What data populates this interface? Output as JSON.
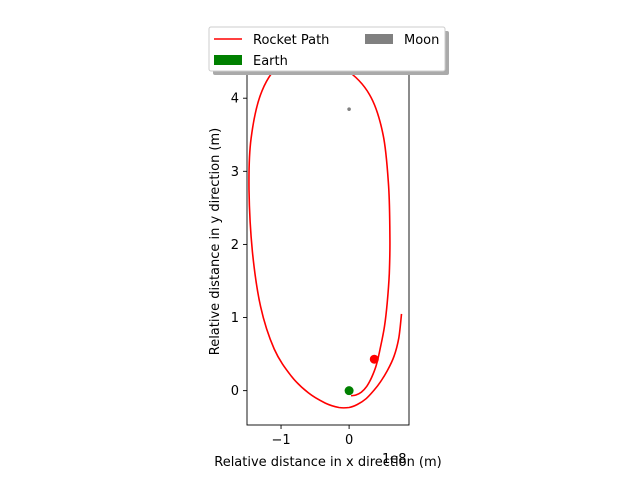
{
  "chart_data": {
    "type": "line",
    "xlabel": "Relative distance in x direction (m)",
    "ylabel": "Relative distance in y direction (m)",
    "offset_label": "1e8",
    "xlim": [
      -1.5,
      0.88
    ],
    "ylim": [
      -0.47,
      4.55
    ],
    "x_ticks": [
      -1,
      0
    ],
    "x_tick_labels": [
      "−1",
      "0"
    ],
    "y_ticks": [
      0,
      1,
      2,
      3,
      4
    ],
    "y_tick_labels": [
      "0",
      "1",
      "2",
      "3",
      "4"
    ],
    "grid": false,
    "legend": {
      "placement": "top-center-outside",
      "entries": [
        {
          "label": "Rocket Path",
          "type": "line",
          "color": "#ff0000"
        },
        {
          "label": "Moon",
          "type": "patch",
          "color": "#808080"
        },
        {
          "label": "Earth",
          "type": "patch",
          "color": "#008000"
        }
      ]
    },
    "series": [
      {
        "name": "Rocket Path",
        "color": "#ff0000",
        "x": [
          0.77,
          0.73,
          0.66,
          0.56,
          0.46,
          0.37,
          0.25,
          0.12,
          0.0,
          -0.15,
          -0.35,
          -0.6,
          -0.85,
          -1.1,
          -1.3,
          -1.42,
          -1.47,
          -1.44,
          -1.28,
          -0.98,
          -0.52,
          -0.06,
          0.3,
          0.5,
          0.58,
          0.6,
          0.59,
          0.56,
          0.52,
          0.46,
          0.4,
          0.33,
          0.26,
          0.18,
          0.1,
          0.03
        ],
        "y": [
          1.05,
          0.72,
          0.47,
          0.27,
          0.12,
          0.01,
          -0.11,
          -0.19,
          -0.23,
          -0.23,
          -0.17,
          -0.03,
          0.2,
          0.57,
          1.15,
          1.9,
          2.75,
          3.45,
          4.1,
          4.48,
          4.55,
          4.4,
          4.05,
          3.5,
          2.8,
          2.1,
          1.6,
          1.2,
          0.88,
          0.59,
          0.35,
          0.18,
          0.06,
          -0.02,
          -0.06,
          -0.07
        ]
      }
    ],
    "markers": [
      {
        "name": "Rocket",
        "x": 0.37,
        "y": 0.43,
        "color": "#ff0000"
      },
      {
        "name": "Earth",
        "x": 0.0,
        "y": 0.0,
        "color": "#008000"
      },
      {
        "name": "Moon",
        "x": 0.0,
        "y": 3.85,
        "color": "#808080"
      }
    ]
  }
}
